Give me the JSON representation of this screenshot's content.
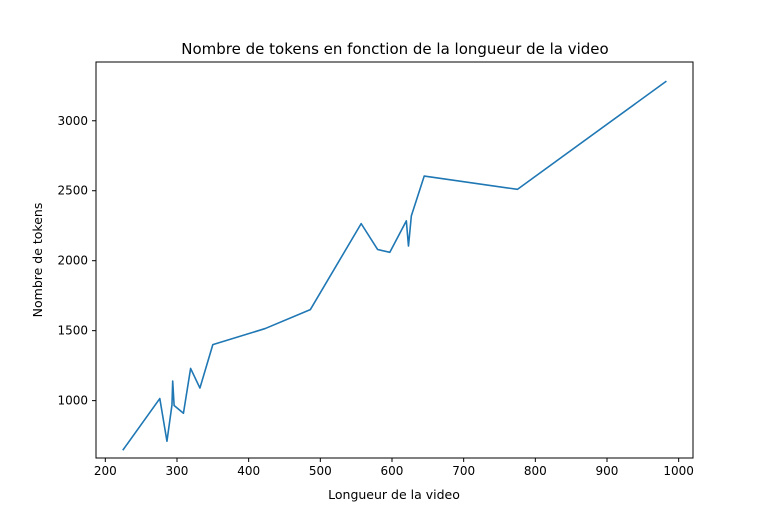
{
  "chart_data": {
    "type": "line",
    "title": "Nombre de tokens en fonction de la longueur de la video",
    "xlabel": "Longueur de la video",
    "ylabel": "Nombre de tokens",
    "xlim": [
      187,
      1020
    ],
    "ylim": [
      590,
      3420
    ],
    "xticks": [
      200,
      300,
      400,
      500,
      600,
      700,
      800,
      900,
      1000
    ],
    "yticks": [
      1000,
      1500,
      2000,
      2500,
      3000
    ],
    "grid": false,
    "series": [
      {
        "color": "#1f77b4",
        "x": [
          225,
          276,
          286,
          293,
          294,
          296,
          309,
          319,
          332,
          350,
          423,
          486,
          557,
          580,
          597,
          620,
          623,
          627,
          645,
          775,
          982
        ],
        "y": [
          650,
          1015,
          710,
          970,
          1140,
          965,
          910,
          1230,
          1090,
          1400,
          1515,
          1650,
          2265,
          2080,
          2060,
          2285,
          2105,
          2320,
          2605,
          2510,
          3280
        ]
      }
    ]
  }
}
